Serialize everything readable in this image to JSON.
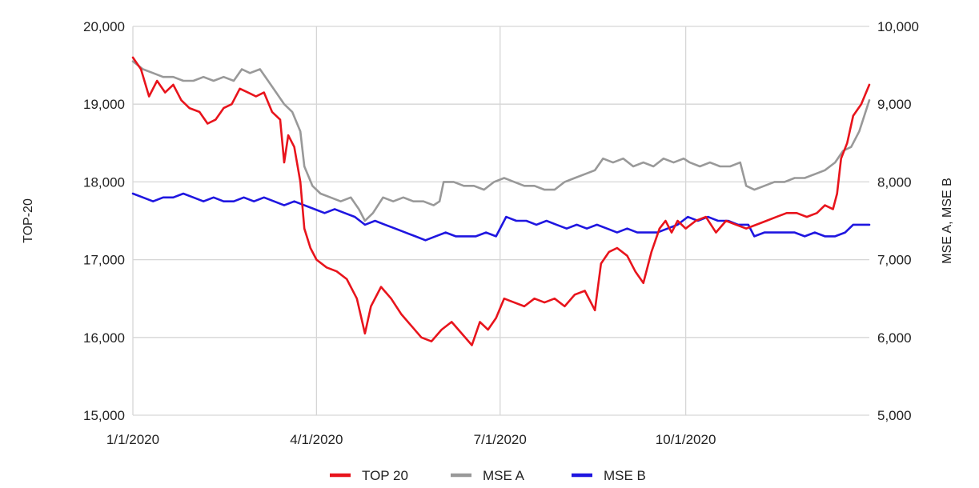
{
  "chart_data": {
    "type": "line",
    "xlabel": "",
    "ylabel_left": "TOP-20",
    "ylabel_right": "MSE A, MSE B",
    "x_range": [
      "2020-01-01",
      "2020-12-31"
    ],
    "x_ticks": [
      {
        "date": "2020-01-01",
        "label": "1/1/2020"
      },
      {
        "date": "2020-04-01",
        "label": "4/1/2020"
      },
      {
        "date": "2020-07-01",
        "label": "7/1/2020"
      },
      {
        "date": "2020-10-01",
        "label": "10/1/2020"
      }
    ],
    "ylim_left": [
      15000,
      20000
    ],
    "ylim_right": [
      5000,
      10000
    ],
    "left_ticks": [
      "15,000",
      "16,000",
      "17,000",
      "18,000",
      "19,000",
      "20,000"
    ],
    "right_ticks": [
      "5,000",
      "6,000",
      "7,000",
      "8,000",
      "9,000",
      "10,000"
    ],
    "grid": true,
    "legend_position": "bottom",
    "series": [
      {
        "name": "TOP 20",
        "axis": "left",
        "color": "#e8141c",
        "points": [
          [
            "2020-01-01",
            19600
          ],
          [
            "2020-01-05",
            19450
          ],
          [
            "2020-01-09",
            19100
          ],
          [
            "2020-01-13",
            19300
          ],
          [
            "2020-01-17",
            19150
          ],
          [
            "2020-01-21",
            19250
          ],
          [
            "2020-01-25",
            19050
          ],
          [
            "2020-01-29",
            18950
          ],
          [
            "2020-02-03",
            18900
          ],
          [
            "2020-02-07",
            18750
          ],
          [
            "2020-02-11",
            18800
          ],
          [
            "2020-02-15",
            18950
          ],
          [
            "2020-02-19",
            19000
          ],
          [
            "2020-02-23",
            19200
          ],
          [
            "2020-02-27",
            19150
          ],
          [
            "2020-03-02",
            19100
          ],
          [
            "2020-03-06",
            19150
          ],
          [
            "2020-03-10",
            18900
          ],
          [
            "2020-03-14",
            18800
          ],
          [
            "2020-03-16",
            18250
          ],
          [
            "2020-03-18",
            18600
          ],
          [
            "2020-03-21",
            18450
          ],
          [
            "2020-03-24",
            18000
          ],
          [
            "2020-03-26",
            17400
          ],
          [
            "2020-03-29",
            17150
          ],
          [
            "2020-04-01",
            17000
          ],
          [
            "2020-04-06",
            16900
          ],
          [
            "2020-04-11",
            16850
          ],
          [
            "2020-04-16",
            16750
          ],
          [
            "2020-04-21",
            16500
          ],
          [
            "2020-04-25",
            16050
          ],
          [
            "2020-04-28",
            16400
          ],
          [
            "2020-05-03",
            16650
          ],
          [
            "2020-05-08",
            16500
          ],
          [
            "2020-05-13",
            16300
          ],
          [
            "2020-05-18",
            16150
          ],
          [
            "2020-05-23",
            16000
          ],
          [
            "2020-05-28",
            15950
          ],
          [
            "2020-06-02",
            16100
          ],
          [
            "2020-06-07",
            16200
          ],
          [
            "2020-06-12",
            16050
          ],
          [
            "2020-06-17",
            15900
          ],
          [
            "2020-06-21",
            16200
          ],
          [
            "2020-06-25",
            16100
          ],
          [
            "2020-06-29",
            16250
          ],
          [
            "2020-07-03",
            16500
          ],
          [
            "2020-07-08",
            16450
          ],
          [
            "2020-07-13",
            16400
          ],
          [
            "2020-07-18",
            16500
          ],
          [
            "2020-07-23",
            16450
          ],
          [
            "2020-07-28",
            16500
          ],
          [
            "2020-08-02",
            16400
          ],
          [
            "2020-08-07",
            16550
          ],
          [
            "2020-08-12",
            16600
          ],
          [
            "2020-08-17",
            16350
          ],
          [
            "2020-08-20",
            16950
          ],
          [
            "2020-08-24",
            17100
          ],
          [
            "2020-08-28",
            17150
          ],
          [
            "2020-09-02",
            17050
          ],
          [
            "2020-09-06",
            16850
          ],
          [
            "2020-09-10",
            16700
          ],
          [
            "2020-09-14",
            17100
          ],
          [
            "2020-09-18",
            17400
          ],
          [
            "2020-09-21",
            17500
          ],
          [
            "2020-09-24",
            17350
          ],
          [
            "2020-09-27",
            17500
          ],
          [
            "2020-10-01",
            17400
          ],
          [
            "2020-10-06",
            17500
          ],
          [
            "2020-10-11",
            17550
          ],
          [
            "2020-10-16",
            17350
          ],
          [
            "2020-10-21",
            17500
          ],
          [
            "2020-10-26",
            17450
          ],
          [
            "2020-10-31",
            17400
          ],
          [
            "2020-11-05",
            17450
          ],
          [
            "2020-11-10",
            17500
          ],
          [
            "2020-11-15",
            17550
          ],
          [
            "2020-11-20",
            17600
          ],
          [
            "2020-11-25",
            17600
          ],
          [
            "2020-11-30",
            17550
          ],
          [
            "2020-12-05",
            17600
          ],
          [
            "2020-12-09",
            17700
          ],
          [
            "2020-12-13",
            17650
          ],
          [
            "2020-12-15",
            17850
          ],
          [
            "2020-12-17",
            18300
          ],
          [
            "2020-12-20",
            18500
          ],
          [
            "2020-12-23",
            18850
          ],
          [
            "2020-12-27",
            19000
          ],
          [
            "2020-12-31",
            19250
          ]
        ]
      },
      {
        "name": "MSE A",
        "axis": "right",
        "color": "#999999",
        "points": [
          [
            "2020-01-01",
            9550
          ],
          [
            "2020-01-06",
            9450
          ],
          [
            "2020-01-11",
            9400
          ],
          [
            "2020-01-16",
            9350
          ],
          [
            "2020-01-21",
            9350
          ],
          [
            "2020-01-26",
            9300
          ],
          [
            "2020-01-31",
            9300
          ],
          [
            "2020-02-05",
            9350
          ],
          [
            "2020-02-10",
            9300
          ],
          [
            "2020-02-15",
            9350
          ],
          [
            "2020-02-20",
            9300
          ],
          [
            "2020-02-24",
            9450
          ],
          [
            "2020-02-28",
            9400
          ],
          [
            "2020-03-04",
            9450
          ],
          [
            "2020-03-08",
            9300
          ],
          [
            "2020-03-12",
            9150
          ],
          [
            "2020-03-16",
            9000
          ],
          [
            "2020-03-20",
            8900
          ],
          [
            "2020-03-24",
            8650
          ],
          [
            "2020-03-26",
            8200
          ],
          [
            "2020-03-30",
            7950
          ],
          [
            "2020-04-03",
            7850
          ],
          [
            "2020-04-08",
            7800
          ],
          [
            "2020-04-13",
            7750
          ],
          [
            "2020-04-18",
            7800
          ],
          [
            "2020-04-22",
            7650
          ],
          [
            "2020-04-25",
            7500
          ],
          [
            "2020-04-29",
            7600
          ],
          [
            "2020-05-04",
            7800
          ],
          [
            "2020-05-09",
            7750
          ],
          [
            "2020-05-14",
            7800
          ],
          [
            "2020-05-19",
            7750
          ],
          [
            "2020-05-24",
            7750
          ],
          [
            "2020-05-29",
            7700
          ],
          [
            "2020-06-01",
            7750
          ],
          [
            "2020-06-03",
            8000
          ],
          [
            "2020-06-08",
            8000
          ],
          [
            "2020-06-13",
            7950
          ],
          [
            "2020-06-18",
            7950
          ],
          [
            "2020-06-23",
            7900
          ],
          [
            "2020-06-28",
            8000
          ],
          [
            "2020-07-03",
            8050
          ],
          [
            "2020-07-08",
            8000
          ],
          [
            "2020-07-13",
            7950
          ],
          [
            "2020-07-18",
            7950
          ],
          [
            "2020-07-23",
            7900
          ],
          [
            "2020-07-28",
            7900
          ],
          [
            "2020-08-02",
            8000
          ],
          [
            "2020-08-07",
            8050
          ],
          [
            "2020-08-12",
            8100
          ],
          [
            "2020-08-17",
            8150
          ],
          [
            "2020-08-21",
            8300
          ],
          [
            "2020-08-26",
            8250
          ],
          [
            "2020-08-31",
            8300
          ],
          [
            "2020-09-05",
            8200
          ],
          [
            "2020-09-10",
            8250
          ],
          [
            "2020-09-15",
            8200
          ],
          [
            "2020-09-20",
            8300
          ],
          [
            "2020-09-25",
            8250
          ],
          [
            "2020-09-30",
            8300
          ],
          [
            "2020-10-03",
            8250
          ],
          [
            "2020-10-08",
            8200
          ],
          [
            "2020-10-13",
            8250
          ],
          [
            "2020-10-18",
            8200
          ],
          [
            "2020-10-23",
            8200
          ],
          [
            "2020-10-28",
            8250
          ],
          [
            "2020-10-31",
            7950
          ],
          [
            "2020-11-04",
            7900
          ],
          [
            "2020-11-09",
            7950
          ],
          [
            "2020-11-14",
            8000
          ],
          [
            "2020-11-19",
            8000
          ],
          [
            "2020-11-24",
            8050
          ],
          [
            "2020-11-29",
            8050
          ],
          [
            "2020-12-04",
            8100
          ],
          [
            "2020-12-09",
            8150
          ],
          [
            "2020-12-14",
            8250
          ],
          [
            "2020-12-18",
            8400
          ],
          [
            "2020-12-22",
            8450
          ],
          [
            "2020-12-26",
            8650
          ],
          [
            "2020-12-31",
            9050
          ]
        ]
      },
      {
        "name": "MSE B",
        "axis": "right",
        "color": "#1f16e0",
        "points": [
          [
            "2020-01-01",
            7850
          ],
          [
            "2020-01-06",
            7800
          ],
          [
            "2020-01-11",
            7750
          ],
          [
            "2020-01-16",
            7800
          ],
          [
            "2020-01-21",
            7800
          ],
          [
            "2020-01-26",
            7850
          ],
          [
            "2020-01-31",
            7800
          ],
          [
            "2020-02-05",
            7750
          ],
          [
            "2020-02-10",
            7800
          ],
          [
            "2020-02-15",
            7750
          ],
          [
            "2020-02-20",
            7750
          ],
          [
            "2020-02-25",
            7800
          ],
          [
            "2020-03-01",
            7750
          ],
          [
            "2020-03-06",
            7800
          ],
          [
            "2020-03-11",
            7750
          ],
          [
            "2020-03-16",
            7700
          ],
          [
            "2020-03-21",
            7750
          ],
          [
            "2020-03-26",
            7700
          ],
          [
            "2020-03-31",
            7650
          ],
          [
            "2020-04-05",
            7600
          ],
          [
            "2020-04-10",
            7650
          ],
          [
            "2020-04-15",
            7600
          ],
          [
            "2020-04-20",
            7550
          ],
          [
            "2020-04-25",
            7450
          ],
          [
            "2020-04-30",
            7500
          ],
          [
            "2020-05-05",
            7450
          ],
          [
            "2020-05-10",
            7400
          ],
          [
            "2020-05-15",
            7350
          ],
          [
            "2020-05-20",
            7300
          ],
          [
            "2020-05-25",
            7250
          ],
          [
            "2020-05-30",
            7300
          ],
          [
            "2020-06-04",
            7350
          ],
          [
            "2020-06-09",
            7300
          ],
          [
            "2020-06-14",
            7300
          ],
          [
            "2020-06-19",
            7300
          ],
          [
            "2020-06-24",
            7350
          ],
          [
            "2020-06-29",
            7300
          ],
          [
            "2020-07-04",
            7550
          ],
          [
            "2020-07-09",
            7500
          ],
          [
            "2020-07-14",
            7500
          ],
          [
            "2020-07-19",
            7450
          ],
          [
            "2020-07-24",
            7500
          ],
          [
            "2020-07-29",
            7450
          ],
          [
            "2020-08-03",
            7400
          ],
          [
            "2020-08-08",
            7450
          ],
          [
            "2020-08-13",
            7400
          ],
          [
            "2020-08-18",
            7450
          ],
          [
            "2020-08-23",
            7400
          ],
          [
            "2020-08-28",
            7350
          ],
          [
            "2020-09-02",
            7400
          ],
          [
            "2020-09-07",
            7350
          ],
          [
            "2020-09-12",
            7350
          ],
          [
            "2020-09-17",
            7350
          ],
          [
            "2020-09-22",
            7400
          ],
          [
            "2020-09-27",
            7450
          ],
          [
            "2020-10-02",
            7550
          ],
          [
            "2020-10-07",
            7500
          ],
          [
            "2020-10-12",
            7550
          ],
          [
            "2020-10-17",
            7500
          ],
          [
            "2020-10-22",
            7500
          ],
          [
            "2020-10-27",
            7450
          ],
          [
            "2020-11-01",
            7450
          ],
          [
            "2020-11-04",
            7300
          ],
          [
            "2020-11-09",
            7350
          ],
          [
            "2020-11-14",
            7350
          ],
          [
            "2020-11-19",
            7350
          ],
          [
            "2020-11-24",
            7350
          ],
          [
            "2020-11-29",
            7300
          ],
          [
            "2020-12-04",
            7350
          ],
          [
            "2020-12-09",
            7300
          ],
          [
            "2020-12-14",
            7300
          ],
          [
            "2020-12-19",
            7350
          ],
          [
            "2020-12-23",
            7450
          ],
          [
            "2020-12-27",
            7450
          ],
          [
            "2020-12-31",
            7450
          ]
        ]
      }
    ]
  }
}
